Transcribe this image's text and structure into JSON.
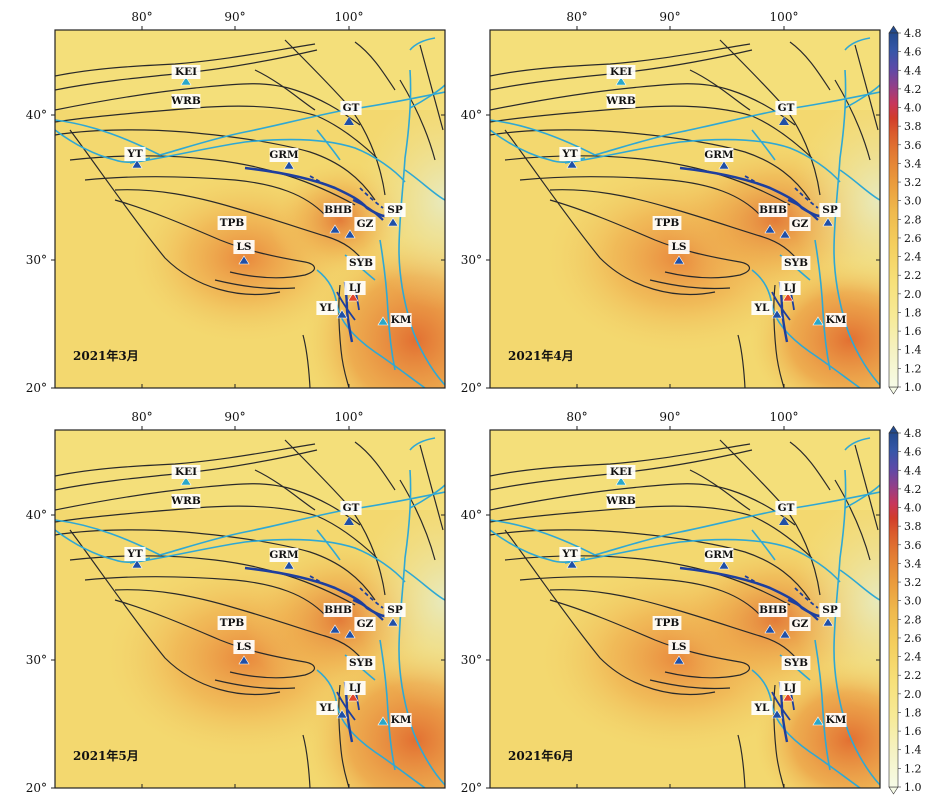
{
  "panels": [
    {
      "label": "2021年3月"
    },
    {
      "label": "2021年4月"
    },
    {
      "label": "2021年5月"
    },
    {
      "label": "2021年6月"
    }
  ],
  "axes": {
    "lon_ticks": [
      "80°",
      "90°",
      "100°"
    ],
    "lat_ticks": [
      "40°",
      "30°",
      "20°"
    ]
  },
  "stations": [
    {
      "code": "KEI",
      "color": "#29a7c9"
    },
    {
      "code": "WRB",
      "color": "#29a7c9"
    },
    {
      "code": "GT",
      "color": "#1f4fa6"
    },
    {
      "code": "YT",
      "color": "#1f4fa6"
    },
    {
      "code": "GRM",
      "color": "#1f4fa6"
    },
    {
      "code": "TPB",
      "color": "#1f4fa6"
    },
    {
      "code": "LS",
      "color": "#1f4fa6"
    },
    {
      "code": "BHB",
      "color": "#1f4fa6"
    },
    {
      "code": "GZ",
      "color": "#1f4fa6"
    },
    {
      "code": "SP",
      "color": "#1f4fa6"
    },
    {
      "code": "SYB",
      "color": "#1f4fa6"
    },
    {
      "code": "LJ",
      "color": "#e0452b"
    },
    {
      "code": "YL",
      "color": "#1f4fa6"
    },
    {
      "code": "KM",
      "color": "#29a7c9"
    }
  ],
  "colorbar": {
    "ticks": [
      "4.8",
      "4.6",
      "4.4",
      "4.2",
      "4.0",
      "3.8",
      "3.6",
      "3.4",
      "3.2",
      "3.0",
      "2.8",
      "2.6",
      "2.4",
      "2.2",
      "2.0",
      "1.8",
      "1.6",
      "1.4",
      "1.2",
      "1.0"
    ],
    "colors": [
      "#f6fbe7",
      "#f5f6cd",
      "#f7f1a0",
      "#f8e77f",
      "#f5d562",
      "#f0b94c",
      "#eb9a3c",
      "#e37b33",
      "#da5a2c",
      "#d43e27",
      "#c93357",
      "#9a3d86",
      "#6b45a6",
      "#4253ac",
      "#2e5aa3",
      "#234a8e"
    ]
  }
}
